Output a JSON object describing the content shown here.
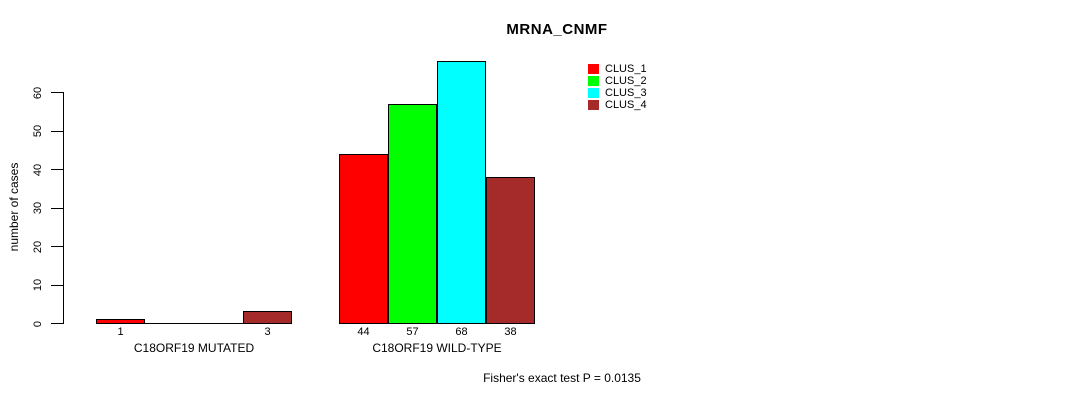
{
  "title": "MRNA_CNMF",
  "y_axis_label": "number of cases",
  "footer": "Fisher's exact test P = 0.0135",
  "legend": {
    "items": [
      {
        "label": "CLUS_1",
        "color": "#FF0000"
      },
      {
        "label": "CLUS_2",
        "color": "#00FF00"
      },
      {
        "label": "CLUS_3",
        "color": "#00FFFF"
      },
      {
        "label": "CLUS_4",
        "color": "#A52A2A"
      }
    ]
  },
  "chart_data": {
    "type": "bar",
    "title": "MRNA_CNMF",
    "xlabel": "",
    "ylabel": "number of cases",
    "ylim": [
      0,
      68
    ],
    "yticks": [
      0,
      10,
      20,
      30,
      40,
      50,
      60
    ],
    "grid": false,
    "legend_position": "top-right",
    "series_names": [
      "CLUS_1",
      "CLUS_2",
      "CLUS_3",
      "CLUS_4"
    ],
    "colors": [
      "#FF0000",
      "#00FF00",
      "#00FFFF",
      "#A52A2A"
    ],
    "groups": [
      {
        "label": "C18ORF19 MUTATED",
        "values": [
          1,
          0,
          0,
          3
        ],
        "bar_labels": [
          "1",
          "",
          "",
          "3"
        ]
      },
      {
        "label": "C18ORF19 WILD-TYPE",
        "values": [
          44,
          57,
          68,
          38
        ],
        "bar_labels": [
          "44",
          "57",
          "68",
          "38"
        ]
      }
    ],
    "annotation": "Fisher's exact test P = 0.0135"
  }
}
